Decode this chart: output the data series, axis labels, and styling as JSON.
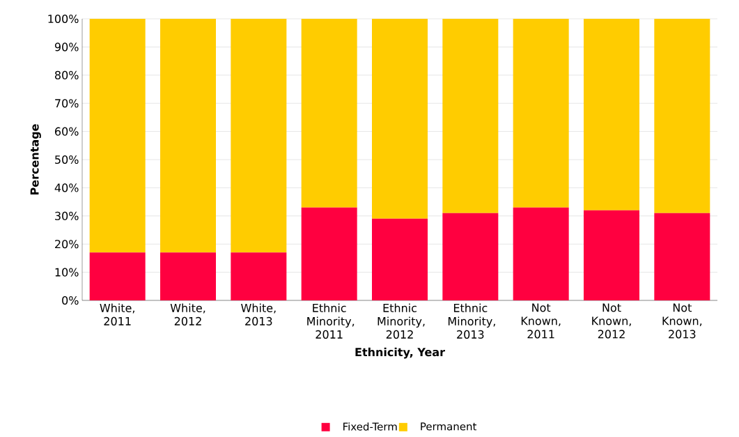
{
  "chart_data": {
    "type": "bar",
    "stacked": true,
    "xlabel": "Ethnicity, Year",
    "ylabel": "Percentage",
    "categories": [
      "White, 2011",
      "White, 2012",
      "White, 2013",
      "Ethnic Minority, 2011",
      "Ethnic Minority, 2012",
      "Ethnic Minority, 2013",
      "Not Known, 2011",
      "Not Known, 2012",
      "Not Known, 2013"
    ],
    "series": [
      {
        "name": "Fixed-Term",
        "color": "#ff0040",
        "values": [
          17,
          17,
          17,
          33,
          29,
          31,
          33,
          32,
          31
        ]
      },
      {
        "name": "Permanent",
        "color": "#ffcc00",
        "values": [
          83,
          83,
          83,
          67,
          71,
          69,
          67,
          68,
          69
        ]
      }
    ],
    "ylim": [
      0,
      100
    ],
    "yticks": [
      {
        "value": 0,
        "label": "0%"
      },
      {
        "value": 10,
        "label": "10%"
      },
      {
        "value": 20,
        "label": "20%"
      },
      {
        "value": 30,
        "label": "30%"
      },
      {
        "value": 40,
        "label": "40%"
      },
      {
        "value": 50,
        "label": "50%"
      },
      {
        "value": 60,
        "label": "60%"
      },
      {
        "value": 70,
        "label": "70%"
      },
      {
        "value": 80,
        "label": "80%"
      },
      {
        "value": 90,
        "label": "90%"
      },
      {
        "value": 100,
        "label": "100%"
      }
    ],
    "grid": "y",
    "legend": "bottom"
  }
}
